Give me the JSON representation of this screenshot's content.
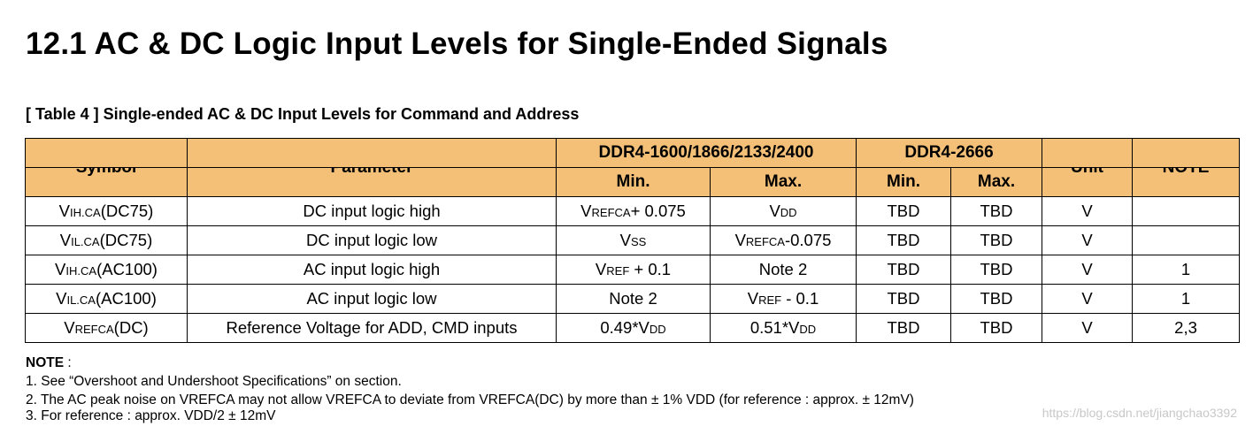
{
  "heading": "12.1 AC & DC Logic Input Levels for Single-Ended Signals",
  "caption": "[ Table 4 ] Single-ended AC & DC Input Levels for Command and Address",
  "table": {
    "header": {
      "symbol": "Symbol",
      "parameter": "Parameter",
      "group1": "DDR4-1600/1866/2133/2400",
      "group2": "DDR4-2666",
      "unit": "Unit",
      "note": "NOTE",
      "min": "Min.",
      "max": "Max."
    },
    "rows": [
      {
        "sym_main": "V",
        "sym_sub": "IH.CA",
        "sym_tail": "(DC75)",
        "parameter": "DC input logic high",
        "min1": [
          {
            "t": "V"
          },
          {
            "t": "REFCA",
            "s": 1
          },
          {
            "t": "+ 0.075"
          }
        ],
        "max1": [
          {
            "t": "V"
          },
          {
            "t": "DD",
            "s": 1
          }
        ],
        "min2": "TBD",
        "max2": "TBD",
        "unit": "V",
        "note": ""
      },
      {
        "sym_main": "V",
        "sym_sub": "IL.CA",
        "sym_tail": "(DC75)",
        "parameter": "DC input logic low",
        "min1": [
          {
            "t": "V"
          },
          {
            "t": "SS",
            "s": 1
          }
        ],
        "max1": [
          {
            "t": "V"
          },
          {
            "t": "REFCA",
            "s": 1
          },
          {
            "t": "-0.075"
          }
        ],
        "min2": "TBD",
        "max2": "TBD",
        "unit": "V",
        "note": ""
      },
      {
        "sym_main": "V",
        "sym_sub": "IH.CA",
        "sym_tail": "(AC100)",
        "parameter": "AC input logic high",
        "min1": [
          {
            "t": "V"
          },
          {
            "t": "REF",
            "s": 1
          },
          {
            "t": " + 0.1"
          }
        ],
        "max1": [
          {
            "t": "Note 2"
          }
        ],
        "min2": "TBD",
        "max2": "TBD",
        "unit": "V",
        "note": "1"
      },
      {
        "sym_main": "V",
        "sym_sub": "IL.CA",
        "sym_tail": "(AC100)",
        "parameter": "AC input logic low",
        "min1": [
          {
            "t": "Note 2"
          }
        ],
        "max1": [
          {
            "t": "V"
          },
          {
            "t": "REF",
            "s": 1
          },
          {
            "t": " - 0.1"
          }
        ],
        "min2": "TBD",
        "max2": "TBD",
        "unit": "V",
        "note": "1"
      },
      {
        "sym_main": "V",
        "sym_sub": "REFCA",
        "sym_tail": "(DC)",
        "parameter": "Reference Voltage for ADD, CMD inputs",
        "min1": [
          {
            "t": "0.49*V"
          },
          {
            "t": "DD",
            "s": 1
          }
        ],
        "max1": [
          {
            "t": "0.51*V"
          },
          {
            "t": "DD",
            "s": 1
          }
        ],
        "min2": "TBD",
        "max2": "TBD",
        "unit": "V",
        "note": "2,3"
      }
    ]
  },
  "notes": {
    "title": "NOTE",
    "title_suffix": " :",
    "items": [
      "1. See “Overshoot and Undershoot Specifications” on section.",
      "2. The AC peak noise on VREFCA may not allow VREFCA to deviate from VREFCA(DC) by more than ± 1% VDD (for reference : approx. ± 12mV)",
      "3. For reference : approx. VDD/2 ± 12mV"
    ]
  },
  "watermark": "https://blog.csdn.net/jiangchao3392"
}
